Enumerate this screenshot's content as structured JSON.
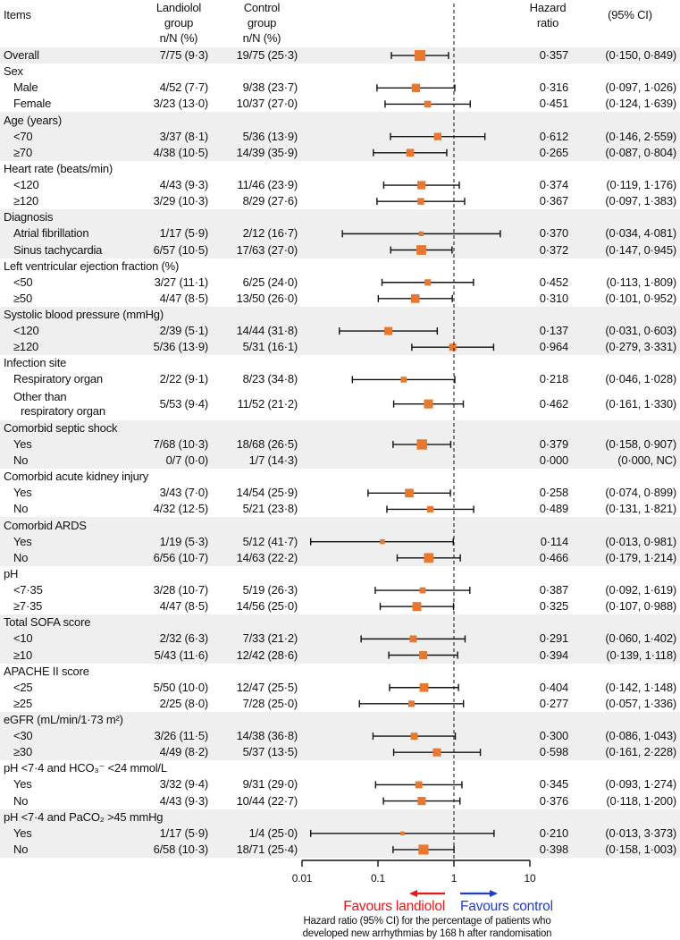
{
  "chart_data": {
    "type": "forest",
    "header": {
      "items": "Items",
      "landiolol": [
        "Landiolol",
        "group",
        "n/N (%)"
      ],
      "control": [
        "Control",
        "group",
        "n/N (%)"
      ],
      "hr": [
        "Hazard",
        "ratio"
      ],
      "ci": "(95% CI)"
    },
    "xaxis": {
      "scale": "log",
      "range": [
        0.01,
        10
      ],
      "ticks": [
        0.01,
        0.1,
        1,
        10
      ],
      "tick_labels": [
        "0.01",
        "0.1",
        "1",
        "10"
      ],
      "reference_line": 1
    },
    "favours_left": "Favours landiolol",
    "favours_right": "Favours control",
    "caption": [
      "Hazard ratio (95% CI) for the percentage of patients who",
      "developed new arrhythmias by 168 h after randomisation"
    ],
    "colors": {
      "marker": "#e8782f",
      "band": "#efefef",
      "left": "#e8161a",
      "right": "#1f3fc4"
    },
    "rows": [
      {
        "label": "Overall",
        "group": 0,
        "indent": false,
        "landiolol": "7/75 (9·3)",
        "control": "19/75 (25·3)",
        "n": 150,
        "hr": 0.357,
        "lo": 0.15,
        "hi": 0.849,
        "hr_text": "0·357",
        "ci_text": "(0·150, 0·849)"
      },
      {
        "label": "Sex",
        "group": 1,
        "header": true
      },
      {
        "label": "Male",
        "group": 1,
        "indent": true,
        "landiolol": "4/52 (7·7)",
        "control": "9/38 (23·7)",
        "n": 90,
        "hr": 0.316,
        "lo": 0.097,
        "hi": 1.026,
        "hr_text": "0·316",
        "ci_text": "(0·097, 1·026)"
      },
      {
        "label": "Female",
        "group": 1,
        "indent": true,
        "landiolol": "3/23 (13·0)",
        "control": "10/37 (27·0)",
        "n": 60,
        "hr": 0.451,
        "lo": 0.124,
        "hi": 1.639,
        "hr_text": "0·451",
        "ci_text": "(0·124, 1·639)"
      },
      {
        "label": "Age (years)",
        "group": 2,
        "header": true
      },
      {
        "label": "<70",
        "group": 2,
        "indent": true,
        "landiolol": "3/37 (8·1)",
        "control": "5/36 (13·9)",
        "n": 73,
        "hr": 0.612,
        "lo": 0.146,
        "hi": 2.559,
        "hr_text": "0·612",
        "ci_text": "(0·146, 2·559)"
      },
      {
        "label": "≥70",
        "group": 2,
        "indent": true,
        "landiolol": "4/38 (10·5)",
        "control": "14/39 (35·9)",
        "n": 77,
        "hr": 0.265,
        "lo": 0.087,
        "hi": 0.804,
        "hr_text": "0·265",
        "ci_text": "(0·087, 0·804)"
      },
      {
        "label": "Heart rate (beats/min)",
        "group": 3,
        "header": true
      },
      {
        "label": "<120",
        "group": 3,
        "indent": true,
        "landiolol": "4/43 (9·3)",
        "control": "11/46 (23·9)",
        "n": 89,
        "hr": 0.374,
        "lo": 0.119,
        "hi": 1.176,
        "hr_text": "0·374",
        "ci_text": "(0·119, 1·176)"
      },
      {
        "label": "≥120",
        "group": 3,
        "indent": true,
        "landiolol": "3/29 (10·3)",
        "control": "8/29 (27·6)",
        "n": 58,
        "hr": 0.367,
        "lo": 0.097,
        "hi": 1.383,
        "hr_text": "0·367",
        "ci_text": "(0·097, 1·383)"
      },
      {
        "label": "Diagnosis",
        "group": 4,
        "header": true
      },
      {
        "label": "Atrial fibrillation",
        "group": 4,
        "indent": true,
        "landiolol": "1/17 (5·9)",
        "control": "2/12 (16·7)",
        "n": 29,
        "hr": 0.37,
        "lo": 0.034,
        "hi": 4.081,
        "hr_text": "0·370",
        "ci_text": "(0·034, 4·081)"
      },
      {
        "label": "Sinus tachycardia",
        "group": 4,
        "indent": true,
        "landiolol": "6/57 (10·5)",
        "control": "17/63 (27·0)",
        "n": 120,
        "hr": 0.372,
        "lo": 0.147,
        "hi": 0.945,
        "hr_text": "0·372",
        "ci_text": "(0·147, 0·945)"
      },
      {
        "label": "Left ventricular ejection fraction (%)",
        "group": 5,
        "header": true
      },
      {
        "label": "<50",
        "group": 5,
        "indent": true,
        "landiolol": "3/27 (11·1)",
        "control": "6/25 (24·0)",
        "n": 52,
        "hr": 0.452,
        "lo": 0.113,
        "hi": 1.809,
        "hr_text": "0·452",
        "ci_text": "(0·113, 1·809)"
      },
      {
        "label": "≥50",
        "group": 5,
        "indent": true,
        "landiolol": "4/47 (8·5)",
        "control": "13/50 (26·0)",
        "n": 97,
        "hr": 0.31,
        "lo": 0.101,
        "hi": 0.952,
        "hr_text": "0·310",
        "ci_text": "(0·101, 0·952)"
      },
      {
        "label": "Systolic blood pressure (mmHg)",
        "group": 6,
        "header": true
      },
      {
        "label": "<120",
        "group": 6,
        "indent": true,
        "landiolol": "2/39 (5·1)",
        "control": "14/44 (31·8)",
        "n": 83,
        "hr": 0.137,
        "lo": 0.031,
        "hi": 0.603,
        "hr_text": "0·137",
        "ci_text": "(0·031, 0·603)"
      },
      {
        "label": "≥120",
        "group": 6,
        "indent": true,
        "landiolol": "5/36 (13·9)",
        "control": "5/31 (16·1)",
        "n": 67,
        "hr": 0.964,
        "lo": 0.279,
        "hi": 3.331,
        "hr_text": "0·964",
        "ci_text": "(0·279, 3·331)"
      },
      {
        "label": "Infection site",
        "group": 7,
        "header": true
      },
      {
        "label": "Respiratory organ",
        "group": 7,
        "indent": true,
        "landiolol": "2/22 (9·1)",
        "control": "8/23 (34·8)",
        "n": 45,
        "hr": 0.218,
        "lo": 0.046,
        "hi": 1.028,
        "hr_text": "0·218",
        "ci_text": "(0·046, 1·028)"
      },
      {
        "label": "Other than",
        "label2": "respiratory organ",
        "group": 7,
        "indent": true,
        "double": true,
        "landiolol": "5/53 (9·4)",
        "control": "11/52 (21·2)",
        "n": 105,
        "hr": 0.462,
        "lo": 0.161,
        "hi": 1.33,
        "hr_text": "0·462",
        "ci_text": "(0·161, 1·330)"
      },
      {
        "label": "Comorbid septic shock",
        "group": 8,
        "header": true
      },
      {
        "label": "Yes",
        "group": 8,
        "indent": true,
        "landiolol": "7/68 (10·3)",
        "control": "18/68 (26·5)",
        "n": 136,
        "hr": 0.379,
        "lo": 0.158,
        "hi": 0.907,
        "hr_text": "0·379",
        "ci_text": "(0·158, 0·907)"
      },
      {
        "label": "No",
        "group": 8,
        "indent": true,
        "landiolol": "0/7 (0·0)",
        "control": "1/7 (14·3)",
        "n": 14,
        "hr": null,
        "lo": null,
        "hi": null,
        "hr_text": "0·000",
        "ci_text": "(0·000, NC)"
      },
      {
        "label": "Comorbid acute kidney injury",
        "group": 9,
        "header": true
      },
      {
        "label": "Yes",
        "group": 9,
        "indent": true,
        "landiolol": "3/43 (7·0)",
        "control": "14/54 (25·9)",
        "n": 97,
        "hr": 0.258,
        "lo": 0.074,
        "hi": 0.899,
        "hr_text": "0·258",
        "ci_text": "(0·074, 0·899)"
      },
      {
        "label": "No",
        "group": 9,
        "indent": true,
        "landiolol": "4/32 (12·5)",
        "control": "5/21 (23·8)",
        "n": 53,
        "hr": 0.489,
        "lo": 0.131,
        "hi": 1.821,
        "hr_text": "0·489",
        "ci_text": "(0·131, 1·821)"
      },
      {
        "label": "Comorbid ARDS",
        "group": 10,
        "header": true
      },
      {
        "label": "Yes",
        "group": 10,
        "indent": true,
        "landiolol": "1/19 (5·3)",
        "control": "5/12 (41·7)",
        "n": 31,
        "hr": 0.114,
        "lo": 0.013,
        "hi": 0.981,
        "hr_text": "0·114",
        "ci_text": "(0·013, 0·981)"
      },
      {
        "label": "No",
        "group": 10,
        "indent": true,
        "landiolol": "6/56 (10·7)",
        "control": "14/63 (22·2)",
        "n": 119,
        "hr": 0.466,
        "lo": 0.179,
        "hi": 1.214,
        "hr_text": "0·466",
        "ci_text": "(0·179, 1·214)"
      },
      {
        "label": "pH",
        "group": 11,
        "header": true
      },
      {
        "label": "<7·35",
        "group": 11,
        "indent": true,
        "landiolol": "3/28 (10·7)",
        "control": "5/19 (26·3)",
        "n": 47,
        "hr": 0.387,
        "lo": 0.092,
        "hi": 1.619,
        "hr_text": "0·387",
        "ci_text": "(0·092, 1·619)"
      },
      {
        "label": "≥7·35",
        "group": 11,
        "indent": true,
        "landiolol": "4/47 (8·5)",
        "control": "14/56 (25·0)",
        "n": 103,
        "hr": 0.325,
        "lo": 0.107,
        "hi": 0.988,
        "hr_text": "0·325",
        "ci_text": "(0·107, 0·988)"
      },
      {
        "label": "Total SOFA score",
        "group": 12,
        "header": true
      },
      {
        "label": "<10",
        "group": 12,
        "indent": true,
        "landiolol": "2/32 (6·3)",
        "control": "7/33 (21·2)",
        "n": 65,
        "hr": 0.291,
        "lo": 0.06,
        "hi": 1.402,
        "hr_text": "0·291",
        "ci_text": "(0·060, 1·402)"
      },
      {
        "label": "≥10",
        "group": 12,
        "indent": true,
        "landiolol": "5/43 (11·6)",
        "control": "12/42 (28·6)",
        "n": 85,
        "hr": 0.394,
        "lo": 0.139,
        "hi": 1.118,
        "hr_text": "0·394",
        "ci_text": "(0·139, 1·118)"
      },
      {
        "label": "APACHE II score",
        "group": 13,
        "header": true
      },
      {
        "label": "<25",
        "group": 13,
        "indent": true,
        "landiolol": "5/50 (10·0)",
        "control": "12/47 (25·5)",
        "n": 97,
        "hr": 0.404,
        "lo": 0.142,
        "hi": 1.148,
        "hr_text": "0·404",
        "ci_text": "(0·142, 1·148)"
      },
      {
        "label": "≥25",
        "group": 13,
        "indent": true,
        "landiolol": "2/25 (8·0)",
        "control": "7/28 (25·0)",
        "n": 53,
        "hr": 0.277,
        "lo": 0.057,
        "hi": 1.336,
        "hr_text": "0·277",
        "ci_text": "(0·057, 1·336)"
      },
      {
        "label": "eGFR (mL/min/1·73 m²)",
        "group": 14,
        "header": true
      },
      {
        "label": "<30",
        "group": 14,
        "indent": true,
        "landiolol": "3/26 (11·5)",
        "control": "14/38 (36·8)",
        "n": 64,
        "hr": 0.3,
        "lo": 0.086,
        "hi": 1.043,
        "hr_text": "0·300",
        "ci_text": "(0·086, 1·043)"
      },
      {
        "label": "≥30",
        "group": 14,
        "indent": true,
        "landiolol": "4/49 (8·2)",
        "control": "5/37 (13·5)",
        "n": 86,
        "hr": 0.598,
        "lo": 0.161,
        "hi": 2.228,
        "hr_text": "0·598",
        "ci_text": "(0·161, 2·228)"
      },
      {
        "label": "pH <7·4 and HCO₃⁻ <24 mmol/L",
        "group": 15,
        "header": true
      },
      {
        "label": "Yes",
        "group": 15,
        "indent": true,
        "landiolol": "3/32 (9·4)",
        "control": "9/31 (29·0)",
        "n": 63,
        "hr": 0.345,
        "lo": 0.093,
        "hi": 1.274,
        "hr_text": "0·345",
        "ci_text": "(0·093, 1·274)"
      },
      {
        "label": "No",
        "group": 15,
        "indent": true,
        "landiolol": "4/43 (9·3)",
        "control": "10/44 (22·7)",
        "n": 87,
        "hr": 0.376,
        "lo": 0.118,
        "hi": 1.2,
        "hr_text": "0·376",
        "ci_text": "(0·118, 1·200)"
      },
      {
        "label": "pH <7·4 and PaCO₂ >45 mmHg",
        "group": 16,
        "header": true
      },
      {
        "label": "Yes",
        "group": 16,
        "indent": true,
        "landiolol": "1/17 (5·9)",
        "control": "1/4 (25·0)",
        "n": 21,
        "hr": 0.21,
        "lo": 0.013,
        "hi": 3.373,
        "hr_text": "0·210",
        "ci_text": "(0·013, 3·373)"
      },
      {
        "label": "No",
        "group": 16,
        "indent": true,
        "landiolol": "6/58 (10·3)",
        "control": "18/71 (25·4)",
        "n": 129,
        "hr": 0.398,
        "lo": 0.158,
        "hi": 1.003,
        "hr_text": "0·398",
        "ci_text": "(0·158, 1·003)"
      }
    ]
  }
}
